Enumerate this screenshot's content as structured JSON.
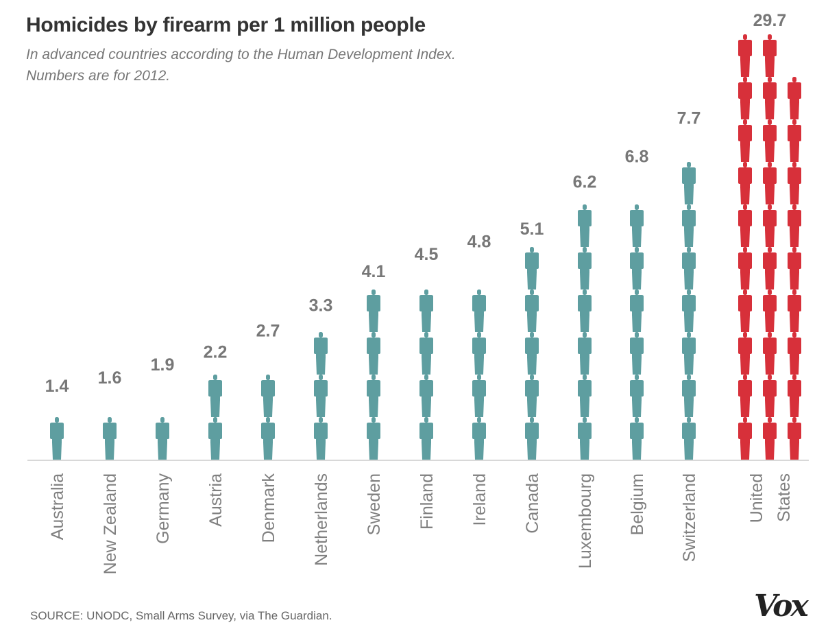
{
  "header": {
    "title": "Homicides by firearm per 1 million people",
    "subtitle_line1": "In advanced countries according to the Human Development Index.",
    "subtitle_line2": "Numbers are for 2012."
  },
  "footer": {
    "source": "SOURCE: UNODC, Small Arms Survey, via The Guardian.",
    "logo_text": "Vox"
  },
  "colors": {
    "teal": "#5e9ea0",
    "red": "#d7303a",
    "value_label": "#777777",
    "country_label": "#808080",
    "baseline": "#cccccc"
  },
  "chart_data": {
    "type": "bar",
    "unit_per_icon": 1,
    "categories": [
      "Australia",
      "New Zealand",
      "Germany",
      "Austria",
      "Denmark",
      "Netherlands",
      "Sweden",
      "Finland",
      "Ireland",
      "Canada",
      "Luxembourg",
      "Belgium",
      "Switzerland",
      "United States"
    ],
    "series": [
      {
        "values": [
          1.4,
          1.6,
          1.9,
          2.2,
          2.7,
          3.3,
          4.1,
          4.5,
          4.8,
          5.1,
          6.2,
          6.8,
          7.7,
          29.7
        ]
      }
    ],
    "highlight": "United States",
    "value_labels": [
      "1.4",
      "1.6",
      "1.9",
      "2.2",
      "2.7",
      "3.3",
      "4.1",
      "4.5",
      "4.8",
      "5.1",
      "6.2",
      "6.8",
      "7.7",
      "29.7"
    ],
    "country_label_lines": [
      [
        "Australia"
      ],
      [
        "New Zealand"
      ],
      [
        "Germany"
      ],
      [
        "Austria"
      ],
      [
        "Denmark"
      ],
      [
        "Netherlands"
      ],
      [
        "Sweden"
      ],
      [
        "Finland"
      ],
      [
        "Ireland"
      ],
      [
        "Canada"
      ],
      [
        "Luxembourg"
      ],
      [
        "Belgium"
      ],
      [
        "Switzerland"
      ],
      [
        "United",
        "States"
      ]
    ],
    "grid": false,
    "legend": "none"
  }
}
